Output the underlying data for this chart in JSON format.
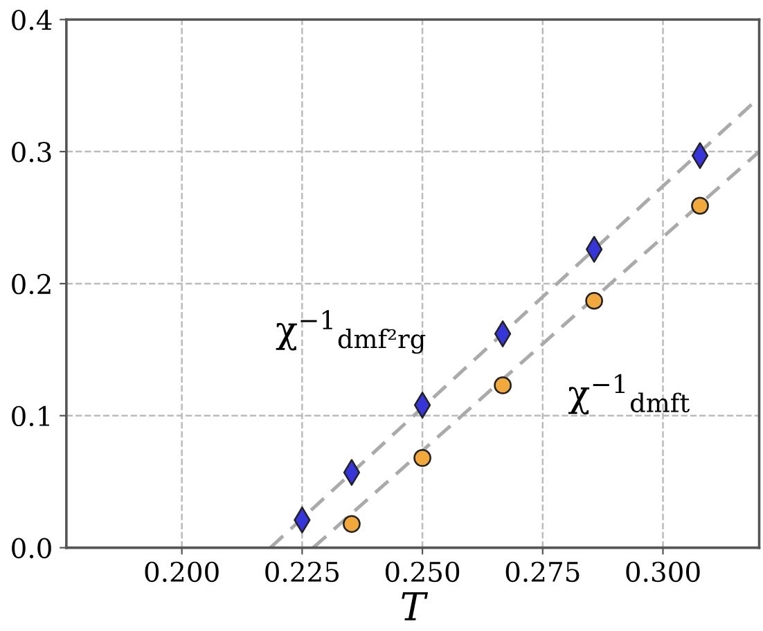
{
  "chart_data": {
    "type": "scatter",
    "xlabel": "T",
    "series": [
      {
        "type": "line",
        "color": "#aaaaaa",
        "x": [
          0.2184,
          0.32
        ],
        "values": [
          0,
          0.341
        ],
        "marker": "none",
        "line_style": "dashed"
      },
      {
        "type": "line",
        "color": "#aaaaaa",
        "x": [
          0.2273,
          0.32
        ],
        "values": [
          0,
          0.3
        ],
        "marker": "none",
        "line_style": "dashed"
      },
      {
        "color": "#3535d8",
        "x": [
          0.225,
          0.2353,
          0.25,
          0.2667,
          0.2857,
          0.3077
        ],
        "values": [
          0.021,
          0.057,
          0.108,
          0.162,
          0.226,
          0.297
        ],
        "marker": "diamond"
      },
      {
        "color": "#f2a93b",
        "x": [
          0.2353,
          0.25,
          0.2667,
          0.2857,
          0.3077
        ],
        "values": [
          0.018,
          0.068,
          0.123,
          0.187,
          0.259
        ],
        "marker": "circle"
      }
    ],
    "annotations": [
      "χ$^{−1}$$_{dmf²rg}$",
      "χ$^{−1}$$_{dmft}$"
    ],
    "xlim": [
      0.176,
      0.32
    ],
    "ylim": [
      0,
      0.4
    ],
    "xticks": [
      {
        "value": 0.2,
        "label": "0.200"
      },
      {
        "value": 0.225,
        "label": "0.225"
      },
      {
        "value": 0.25,
        "label": "0.250"
      },
      {
        "value": 0.275,
        "label": "0.275"
      },
      {
        "value": 0.3,
        "label": "0.300"
      }
    ],
    "yticks": [
      {
        "value": 0,
        "label": "0.0"
      },
      {
        "value": 0.1,
        "label": "0.1"
      },
      {
        "value": 0.2,
        "label": "0.2"
      },
      {
        "value": 0.3,
        "label": "0.3"
      },
      {
        "value": 0.4,
        "label": "0.4"
      }
    ],
    "grid": true
  }
}
